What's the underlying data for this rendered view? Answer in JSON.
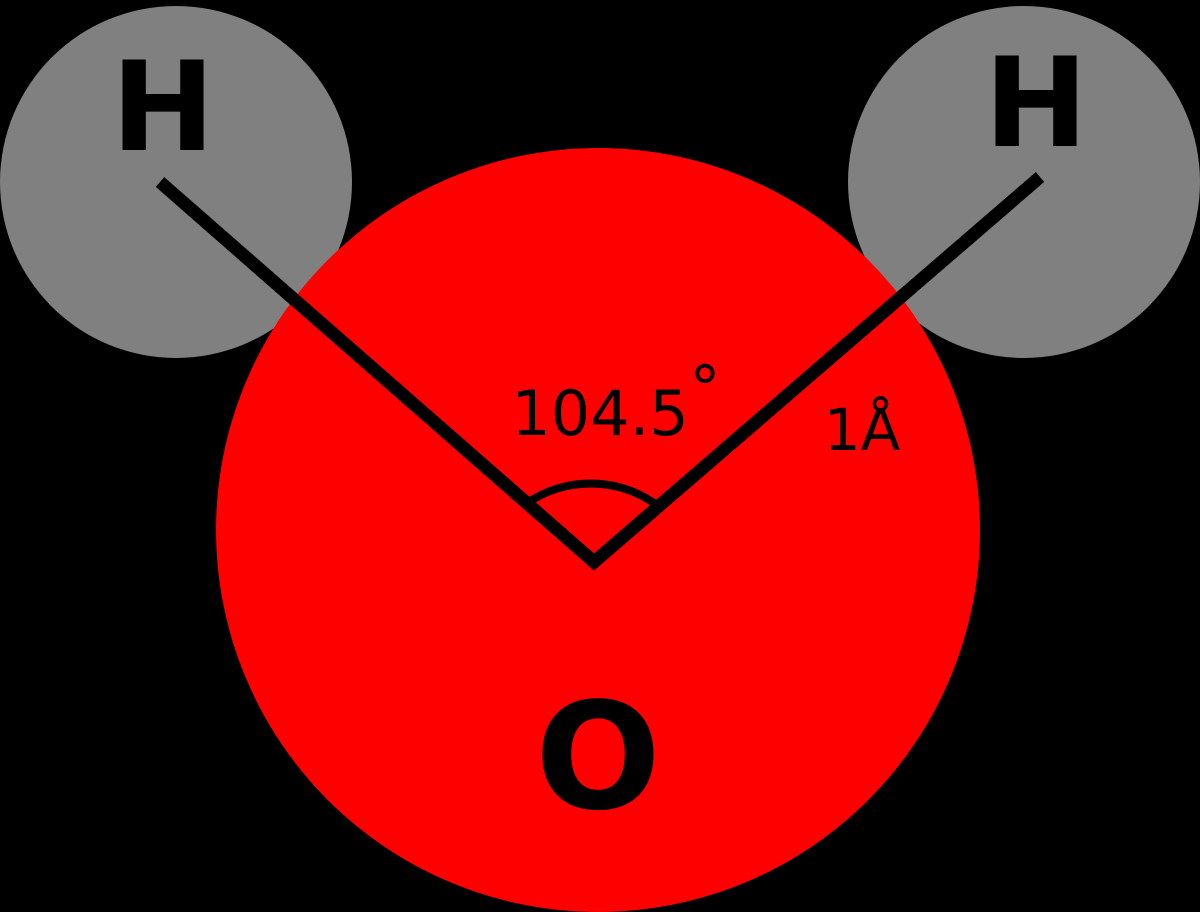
{
  "molecule": {
    "hydrogen_left": {
      "symbol": "H"
    },
    "hydrogen_right": {
      "symbol": "H"
    },
    "oxygen": {
      "symbol": "O"
    }
  },
  "measurements": {
    "bond_angle": {
      "value": "104.5",
      "unit_symbol": "°"
    },
    "bond_length": {
      "text": "1Å"
    }
  },
  "colors": {
    "background": "#000000",
    "oxygen": "#ff0000",
    "hydrogen": "#808080",
    "bond": "#000000",
    "label": "#000000"
  }
}
